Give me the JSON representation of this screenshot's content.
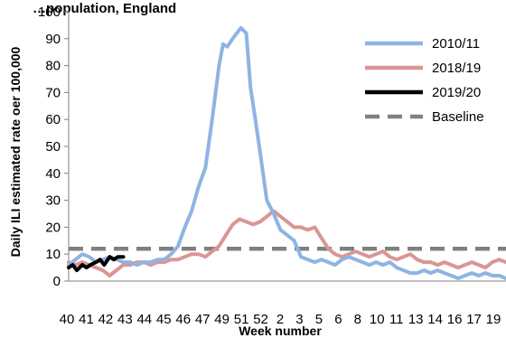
{
  "chart_data": {
    "type": "line",
    "title": "…population, England",
    "xlabel": "Week number",
    "ylabel": "Daily ILI estimated rate oer 100,000",
    "ylim": [
      0,
      100
    ],
    "yticks": [
      0,
      10,
      20,
      30,
      40,
      50,
      60,
      70,
      80,
      90,
      100
    ],
    "x_tick_labels": [
      "40",
      "41",
      "42",
      "43",
      "44",
      "45",
      "46",
      "47",
      "49",
      "51",
      "52",
      "2",
      "3",
      "5",
      "6",
      "8",
      "10",
      "11",
      "13",
      "14",
      "16",
      "17",
      "19"
    ],
    "grid": false,
    "legend_position": "right",
    "colors": {
      "2010/11": "#8EB4E3",
      "2018/19": "#D99694",
      "2019/20": "#000000",
      "Baseline": "#808080"
    },
    "series": [
      {
        "name": "2010/11",
        "x": [
          40,
          40.5,
          41,
          41.5,
          42,
          42.5,
          43,
          43.5,
          44,
          44.5,
          45,
          45.5,
          46,
          46.5,
          47,
          47.5,
          48,
          48.5,
          49,
          49.5,
          50,
          50.5,
          51,
          51.3,
          51.6,
          52,
          52.3,
          52.6,
          53,
          53.3,
          53.6,
          54,
          54.5,
          55,
          55.5,
          56,
          56.5,
          57,
          57.5,
          58,
          58.5,
          59,
          59.5,
          60,
          60.5,
          61,
          61.5,
          62,
          62.5,
          63,
          63.5,
          64,
          64.5,
          65,
          65.5,
          66,
          66.5,
          67,
          67.5,
          68,
          68.5,
          69,
          69.5,
          70,
          70.5,
          71,
          71.5,
          72
        ],
        "values": [
          6,
          8,
          10,
          9,
          7,
          8,
          9,
          8,
          7,
          7,
          6,
          7,
          7,
          8,
          8,
          10,
          13,
          20,
          26,
          35,
          42,
          60,
          80,
          88,
          87,
          90,
          92,
          94,
          92,
          72,
          62,
          48,
          30,
          25,
          19,
          17,
          15,
          9,
          8,
          7,
          8,
          7,
          6,
          8,
          9,
          8,
          7,
          6,
          7,
          6,
          7,
          5,
          4,
          3,
          3,
          4,
          3,
          4,
          3,
          2,
          1,
          2,
          3,
          2,
          3,
          2,
          2,
          1
        ]
      },
      {
        "name": "2018/19",
        "x": [
          40,
          40.5,
          41,
          41.5,
          42,
          42.5,
          43,
          43.5,
          44,
          44.5,
          45,
          45.5,
          46,
          46.5,
          47,
          47.5,
          48,
          48.5,
          49,
          49.5,
          50,
          50.5,
          51,
          51.5,
          52,
          52.5,
          53,
          53.5,
          54,
          54.5,
          55,
          55.5,
          56,
          56.5,
          57,
          57.5,
          58,
          58.5,
          59,
          59.5,
          60,
          60.5,
          61,
          61.5,
          62,
          62.5,
          63,
          63.5,
          64,
          64.5,
          65,
          65.5,
          66,
          66.5,
          67,
          67.5,
          68,
          68.5,
          69,
          69.5,
          70,
          70.5,
          71,
          71.5,
          72
        ],
        "values": [
          7,
          6,
          7,
          6,
          5,
          4,
          2,
          4,
          6,
          6,
          7,
          7,
          6,
          7,
          7,
          8,
          8,
          9,
          10,
          10,
          9,
          11,
          13,
          17,
          21,
          23,
          22,
          21,
          22,
          24,
          26,
          24,
          22,
          20,
          20,
          19,
          20,
          16,
          12,
          10,
          9,
          10,
          11,
          10,
          9,
          10,
          11,
          9,
          8,
          9,
          10,
          8,
          7,
          7,
          6,
          7,
          6,
          5,
          6,
          7,
          6,
          5,
          7,
          8,
          7
        ]
      },
      {
        "name": "2019/20",
        "x": [
          40,
          40.3,
          40.6,
          41,
          41.3,
          41.6,
          42,
          42.3,
          42.6,
          43,
          43.3,
          43.6,
          44
        ],
        "values": [
          5,
          6,
          4,
          6,
          5,
          6,
          7,
          8,
          6,
          9,
          8,
          9,
          9
        ]
      },
      {
        "name": "Baseline",
        "x": [
          40,
          72
        ],
        "values": [
          12,
          12
        ]
      }
    ]
  }
}
